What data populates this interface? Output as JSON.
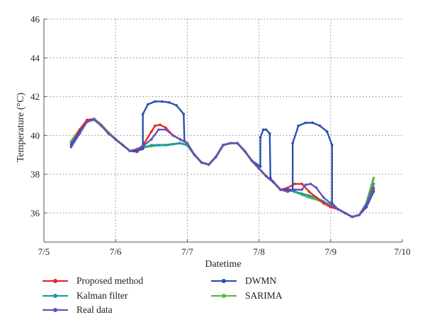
{
  "chart_data": {
    "type": "line",
    "title": "",
    "xlabel": "Datetime",
    "ylabel": "Temperature (°C)",
    "xlim": [
      5,
      10
    ],
    "ylim": [
      34.5,
      46
    ],
    "x_ticks": [
      5,
      6,
      7,
      8,
      9,
      10
    ],
    "x_tick_labels": [
      "7/5",
      "7/6",
      "7/7",
      "7/8",
      "7/9",
      "7/10"
    ],
    "y_ticks": [
      36,
      38,
      40,
      42,
      44,
      46
    ],
    "y_tick_labels": [
      "36",
      "38",
      "40",
      "42",
      "44",
      "46"
    ],
    "grid": true,
    "legend_position": "bottom",
    "series": [
      {
        "name": "Proposed method",
        "color": "#e8262a",
        "x": [
          5.38,
          5.5,
          5.6,
          5.7,
          5.8,
          5.9,
          6.0,
          6.1,
          6.2,
          6.3,
          6.4,
          6.5,
          6.55,
          6.62,
          6.7,
          6.8,
          6.9,
          7.0,
          7.1,
          7.2,
          7.3,
          7.4,
          7.5,
          7.6,
          7.7,
          7.8,
          7.9,
          8.0,
          8.1,
          8.2,
          8.3,
          8.4,
          8.5,
          8.6,
          8.7,
          8.8,
          8.9,
          9.0,
          9.1,
          9.2,
          9.3,
          9.4,
          9.5,
          9.6
        ],
        "y": [
          39.5,
          40.3,
          40.8,
          40.85,
          40.5,
          40.1,
          39.8,
          39.5,
          39.2,
          39.15,
          39.6,
          40.2,
          40.5,
          40.55,
          40.4,
          40.0,
          39.8,
          39.6,
          39.0,
          38.6,
          38.5,
          38.9,
          39.5,
          39.6,
          39.6,
          39.2,
          38.7,
          38.3,
          37.9,
          37.6,
          37.2,
          37.3,
          37.5,
          37.5,
          37.1,
          36.8,
          36.5,
          36.3,
          36.2,
          36.0,
          35.8,
          35.9,
          36.4,
          37.3
        ]
      },
      {
        "name": "Kalman filter",
        "color": "#1f9aa8",
        "x": [
          5.38,
          5.5,
          5.6,
          5.7,
          5.8,
          5.9,
          6.0,
          6.1,
          6.2,
          6.3,
          6.4,
          6.5,
          6.6,
          6.7,
          6.8,
          6.9,
          7.0,
          7.1,
          7.2,
          7.3,
          7.4,
          7.5,
          7.6,
          7.7,
          7.8,
          7.9,
          8.0,
          8.1,
          8.2,
          8.3,
          8.4,
          8.5,
          8.6,
          8.7,
          8.8,
          8.9,
          9.0,
          9.1,
          9.2,
          9.3,
          9.4,
          9.5,
          9.6
        ],
        "y": [
          39.6,
          40.2,
          40.7,
          40.8,
          40.5,
          40.1,
          39.8,
          39.5,
          39.2,
          39.2,
          39.4,
          39.5,
          39.5,
          39.5,
          39.55,
          39.6,
          39.5,
          39.0,
          38.6,
          38.5,
          38.9,
          39.5,
          39.6,
          39.6,
          39.2,
          38.7,
          38.3,
          37.9,
          37.6,
          37.2,
          37.2,
          37.1,
          37.0,
          36.9,
          36.8,
          36.6,
          36.4,
          36.2,
          36.0,
          35.8,
          35.9,
          36.5,
          37.5
        ]
      },
      {
        "name": "Real data",
        "color": "#6b4fb8",
        "x": [
          5.38,
          5.5,
          5.6,
          5.7,
          5.8,
          5.9,
          6.0,
          6.1,
          6.2,
          6.3,
          6.4,
          6.5,
          6.6,
          6.7,
          6.8,
          6.9,
          7.0,
          7.1,
          7.2,
          7.3,
          7.4,
          7.5,
          7.6,
          7.7,
          7.8,
          7.9,
          8.0,
          8.1,
          8.2,
          8.3,
          8.4,
          8.5,
          8.6,
          8.65,
          8.72,
          8.8,
          8.9,
          9.0,
          9.1,
          9.2,
          9.3,
          9.4,
          9.5,
          9.6
        ],
        "y": [
          39.4,
          40.1,
          40.7,
          40.85,
          40.5,
          40.1,
          39.8,
          39.5,
          39.2,
          39.3,
          39.5,
          39.8,
          40.3,
          40.3,
          40.0,
          39.8,
          39.6,
          39.0,
          38.6,
          38.5,
          38.9,
          39.5,
          39.6,
          39.6,
          39.2,
          38.7,
          38.3,
          37.9,
          37.6,
          37.2,
          37.1,
          37.2,
          37.2,
          37.45,
          37.5,
          37.3,
          36.8,
          36.5,
          36.2,
          36.0,
          35.8,
          35.9,
          36.4,
          37.2
        ]
      },
      {
        "name": "DWMN",
        "color": "#2a52b0",
        "x": [
          5.38,
          5.5,
          5.6,
          5.7,
          5.8,
          5.9,
          6.0,
          6.1,
          6.2,
          6.3,
          6.38,
          6.38,
          6.45,
          6.55,
          6.65,
          6.75,
          6.85,
          6.95,
          6.96,
          7.0,
          7.1,
          7.2,
          7.3,
          7.4,
          7.5,
          7.6,
          7.7,
          7.8,
          7.9,
          8.02,
          8.02,
          8.06,
          8.1,
          8.15,
          8.16,
          8.2,
          8.3,
          8.47,
          8.47,
          8.55,
          8.65,
          8.75,
          8.85,
          8.95,
          9.02,
          9.02,
          9.1,
          9.2,
          9.3,
          9.4,
          9.5,
          9.6
        ],
        "y": [
          39.5,
          40.2,
          40.7,
          40.85,
          40.5,
          40.1,
          39.8,
          39.5,
          39.2,
          39.2,
          39.3,
          41.1,
          41.6,
          41.75,
          41.75,
          41.7,
          41.55,
          41.1,
          39.7,
          39.6,
          39.0,
          38.6,
          38.5,
          38.9,
          39.5,
          39.6,
          39.6,
          39.2,
          38.7,
          38.4,
          39.9,
          40.3,
          40.3,
          40.1,
          37.8,
          37.6,
          37.2,
          37.2,
          39.6,
          40.5,
          40.65,
          40.65,
          40.5,
          40.2,
          39.5,
          36.5,
          36.2,
          36.0,
          35.8,
          35.9,
          36.3,
          37.1
        ]
      },
      {
        "name": "SARIMA",
        "color": "#5bb84a",
        "x": [
          5.38,
          5.5,
          5.6,
          5.7,
          5.8,
          5.9,
          6.0,
          6.1,
          6.2,
          6.3,
          6.4,
          6.5,
          6.6,
          6.7,
          6.8,
          6.9,
          7.0,
          7.1,
          7.2,
          7.3,
          7.4,
          7.5,
          7.6,
          7.7,
          7.8,
          7.9,
          8.0,
          8.1,
          8.2,
          8.3,
          8.4,
          8.5,
          8.6,
          8.7,
          8.8,
          8.9,
          9.0,
          9.1,
          9.2,
          9.3,
          9.4,
          9.5,
          9.6
        ],
        "y": [
          39.7,
          40.3,
          40.75,
          40.85,
          40.55,
          40.15,
          39.8,
          39.5,
          39.2,
          39.25,
          39.4,
          39.45,
          39.5,
          39.5,
          39.55,
          39.6,
          39.5,
          39.0,
          38.6,
          38.5,
          38.9,
          39.5,
          39.6,
          39.6,
          39.2,
          38.7,
          38.3,
          37.9,
          37.6,
          37.2,
          37.2,
          37.1,
          36.95,
          36.8,
          36.7,
          36.55,
          36.4,
          36.2,
          36.0,
          35.8,
          35.9,
          36.5,
          37.8
        ]
      }
    ]
  },
  "legend": {
    "items": [
      {
        "label": "Proposed method",
        "color": "#e8262a"
      },
      {
        "label": "Kalman filter",
        "color": "#1f9aa8"
      },
      {
        "label": "Real data",
        "color": "#6b4fb8"
      },
      {
        "label": "DWMN",
        "color": "#2a52b0"
      },
      {
        "label": "SARIMA",
        "color": "#5bb84a"
      }
    ]
  }
}
